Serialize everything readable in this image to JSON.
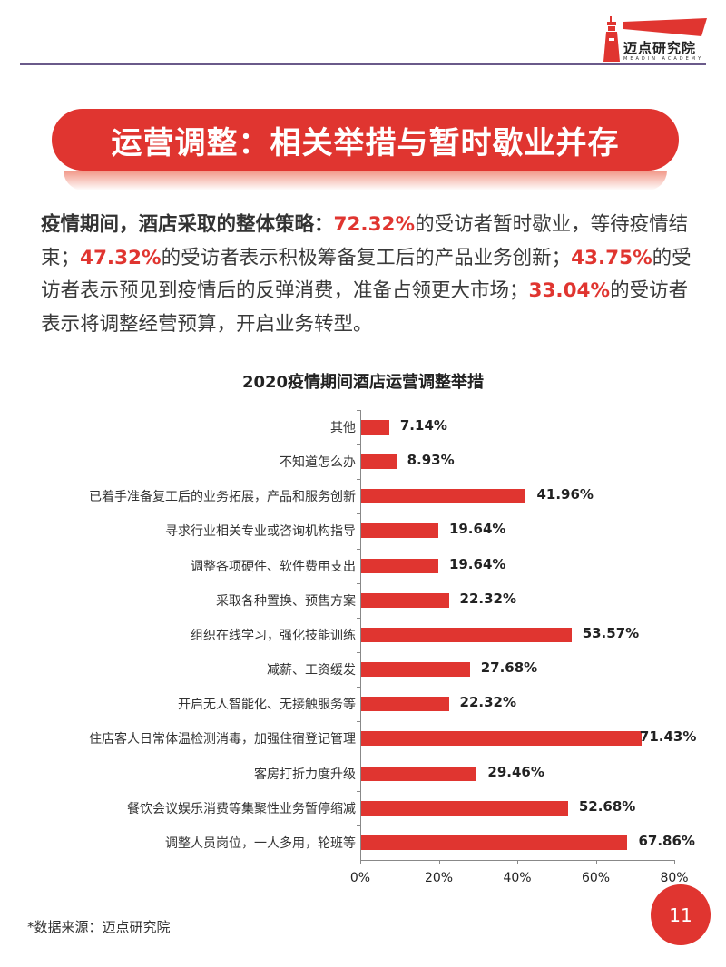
{
  "logo": {
    "name": "迈点研究院",
    "subtitle": "MEADIN ACADEMY"
  },
  "header": {
    "title": "运营调整：相关举措与暂时歇业并存"
  },
  "summary": {
    "lead": "疫情期间，酒店采取的整体策略：",
    "p1_value": "72.32%",
    "p1_text": "的受访者暂时歇业，等待疫情结束；",
    "p2_value": "47.32%",
    "p2_text": "的受访者表示积极筹备复工后的产品业务创新；",
    "p3_value": "43.75%",
    "p3_text": "的受访者表示预见到疫情后的反弹消费，准备占领更大市场；",
    "p4_value": "33.04%",
    "p4_text": "的受访者表示将调整经营预算，开启业务转型。"
  },
  "colors": {
    "accent": "#e03530",
    "rule": "#6a5a8a"
  },
  "chart_data": {
    "type": "bar",
    "orientation": "horizontal",
    "title": "2020疫情期间酒店运营调整举措",
    "xlabel": "",
    "ylabel": "",
    "xlim": [
      0,
      80
    ],
    "x_ticks": [
      "0%",
      "20%",
      "40%",
      "60%",
      "80%"
    ],
    "grid": false,
    "categories": [
      "其他",
      "不知道怎么办",
      "已着手准备复工后的业务拓展，产品和服务创新",
      "寻求行业相关专业或咨询机构指导",
      "调整各项硬件、软件费用支出",
      "采取各种置换、预售方案",
      "组织在线学习，强化技能训练",
      "减薪、工资缓发",
      "开启无人智能化、无接触服务等",
      "住店客人日常体温检测消毒，加强住宿登记管理",
      "客房打折力度升级",
      "餐饮会议娱乐消费等集聚性业务暂停缩减",
      "调整人员岗位，一人多用，轮班等"
    ],
    "values": [
      7.14,
      8.93,
      41.96,
      19.64,
      19.64,
      22.32,
      53.57,
      27.68,
      22.32,
      71.43,
      29.46,
      52.68,
      67.86
    ],
    "labels": [
      "7.14%",
      "8.93%",
      "41.96%",
      "19.64%",
      "19.64%",
      "22.32%",
      "53.57%",
      "27.68%",
      "22.32%",
      "71.43%",
      "29.46%",
      "52.68%",
      "67.86%"
    ],
    "bar_color": "#e03530"
  },
  "footer": {
    "source": "*数据来源：迈点研究院",
    "page_number": "11"
  }
}
